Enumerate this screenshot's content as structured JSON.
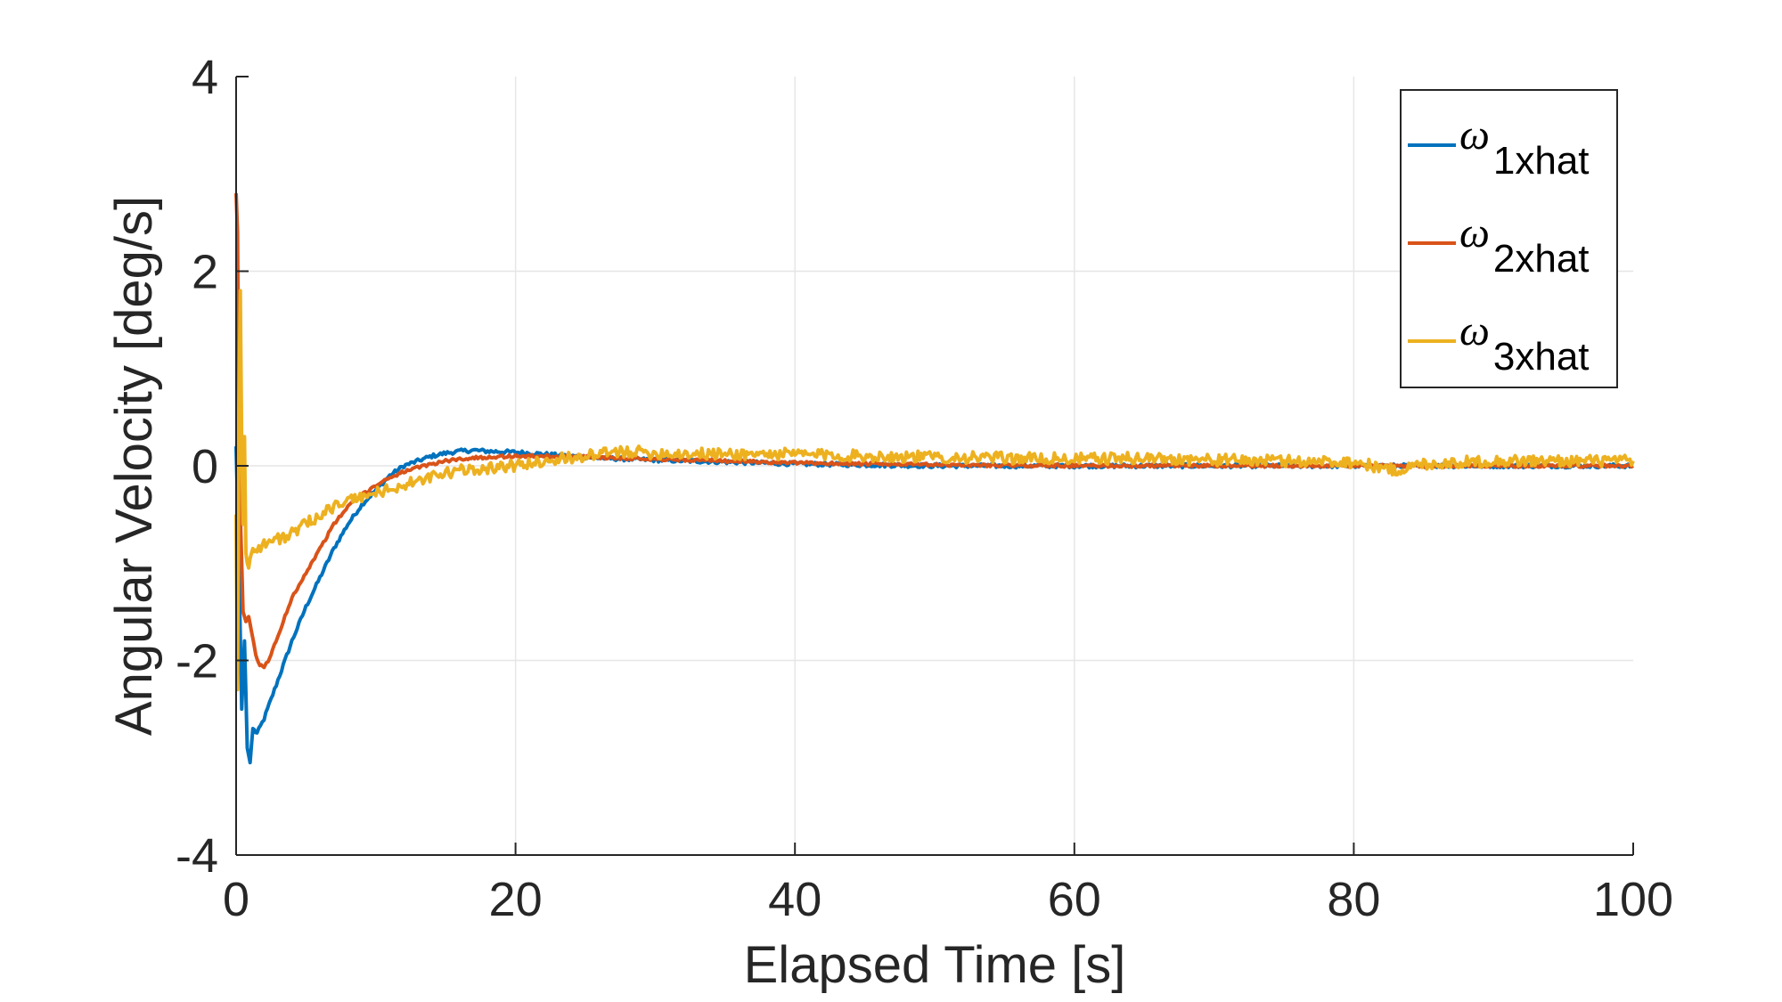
{
  "chart_data": {
    "type": "line",
    "title": "",
    "xlabel": "Elapsed Time [s]",
    "ylabel": "Angular Velocity [deg/s]",
    "xlim": [
      0,
      100
    ],
    "ylim": [
      -4,
      4
    ],
    "xticks": [
      0,
      20,
      40,
      60,
      80,
      100
    ],
    "xtick_labels": [
      "0",
      "20",
      "40",
      "60",
      "80",
      "100"
    ],
    "yticks": [
      -4,
      -2,
      0,
      2,
      4
    ],
    "ytick_labels": [
      "-4",
      "-2",
      "0",
      "2",
      "4"
    ],
    "grid": true,
    "legend_position": "top-right",
    "series": [
      {
        "name": "ω1xhat",
        "legend_symbol": "ω",
        "legend_subscript": "1xhat",
        "color": "#0072BD",
        "noise": 0.02,
        "x": [
          0,
          0.2,
          0.4,
          0.6,
          0.8,
          1.0,
          1.2,
          1.5,
          2,
          2.5,
          3,
          3.5,
          4,
          5,
          6,
          7,
          8,
          9,
          10,
          11,
          12,
          13,
          14,
          15,
          16,
          17,
          18,
          20,
          22,
          24,
          26,
          28,
          30,
          35,
          40,
          45,
          50,
          55,
          60,
          65,
          70,
          75,
          80,
          85,
          90,
          95,
          100
        ],
        "y": [
          0.2,
          -1.0,
          -2.5,
          -1.8,
          -2.9,
          -3.05,
          -2.7,
          -2.75,
          -2.6,
          -2.4,
          -2.2,
          -2.0,
          -1.8,
          -1.45,
          -1.15,
          -0.85,
          -0.6,
          -0.4,
          -0.25,
          -0.1,
          0.0,
          0.05,
          0.1,
          0.13,
          0.15,
          0.16,
          0.15,
          0.14,
          0.12,
          0.1,
          0.08,
          0.07,
          0.06,
          0.04,
          0.02,
          0.01,
          0.0,
          0.0,
          0.0,
          0.0,
          0.0,
          0.0,
          0.0,
          0.0,
          0.0,
          0.0,
          0.0
        ]
      },
      {
        "name": "ω2xhat",
        "legend_symbol": "ω",
        "legend_subscript": "2xhat",
        "color": "#D95319",
        "noise": 0.015,
        "x": [
          0,
          0.1,
          0.2,
          0.3,
          0.5,
          0.7,
          0.9,
          1.1,
          1.4,
          1.7,
          2.0,
          2.3,
          2.6,
          3,
          3.5,
          4,
          5,
          6,
          7,
          8,
          9,
          10,
          11,
          12,
          13,
          14,
          15,
          16,
          18,
          20,
          22,
          25,
          30,
          35,
          40,
          50,
          60,
          70,
          80,
          90,
          100
        ],
        "y": [
          2.8,
          2.4,
          0.5,
          -0.5,
          -1.5,
          -1.6,
          -1.55,
          -1.7,
          -1.95,
          -2.05,
          -2.07,
          -2.0,
          -1.9,
          -1.75,
          -1.55,
          -1.35,
          -1.1,
          -0.85,
          -0.6,
          -0.42,
          -0.3,
          -0.2,
          -0.12,
          -0.06,
          -0.02,
          0.02,
          0.05,
          0.07,
          0.09,
          0.1,
          0.1,
          0.09,
          0.07,
          0.05,
          0.03,
          0.01,
          0.0,
          0.0,
          0.0,
          0.0,
          0.0
        ]
      },
      {
        "name": "ω3xhat",
        "legend_symbol": "ω",
        "legend_subscript": "3xhat",
        "color": "#EDB120",
        "noise": 0.06,
        "x": [
          0,
          0.1,
          0.2,
          0.3,
          0.4,
          0.5,
          0.6,
          0.7,
          0.8,
          0.9,
          1.0,
          1.2,
          1.5,
          2,
          3,
          4,
          5,
          6,
          7,
          8,
          9,
          10,
          11,
          12,
          13,
          14,
          15,
          16,
          18,
          20,
          22,
          25,
          28,
          30,
          35,
          40,
          45,
          50,
          55,
          60,
          65,
          70,
          75,
          80,
          83,
          85,
          90,
          95,
          100
        ],
        "y": [
          -0.5,
          -2.3,
          0.6,
          1.8,
          0.2,
          -0.6,
          0.3,
          -0.9,
          -1.0,
          -1.05,
          -0.95,
          -0.85,
          -0.85,
          -0.8,
          -0.75,
          -0.7,
          -0.6,
          -0.5,
          -0.42,
          -0.36,
          -0.32,
          -0.28,
          -0.24,
          -0.2,
          -0.16,
          -0.12,
          -0.08,
          -0.05,
          -0.02,
          0.0,
          0.05,
          0.1,
          0.15,
          0.13,
          0.12,
          0.12,
          0.1,
          0.09,
          0.08,
          0.07,
          0.08,
          0.06,
          0.05,
          0.04,
          -0.05,
          0.02,
          0.05,
          0.05,
          0.05
        ]
      }
    ]
  }
}
